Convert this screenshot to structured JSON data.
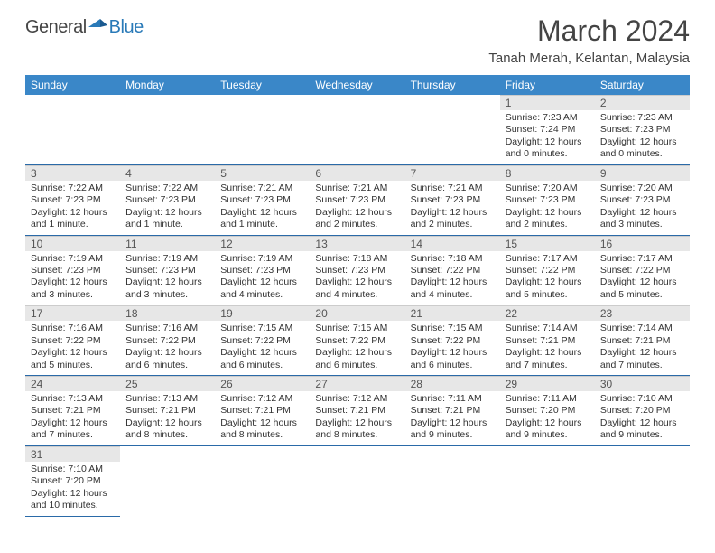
{
  "logo": {
    "part1": "General",
    "part2": "Blue"
  },
  "title": "March 2024",
  "location": "Tanah Merah, Kelantan, Malaysia",
  "colors": {
    "header_bg": "#3a87c8",
    "header_text": "#ffffff",
    "daynum_bg": "#e7e7e7",
    "row_border": "#2a6aa8",
    "logo_blue": "#2a7ab8"
  },
  "weekdays": [
    "Sunday",
    "Monday",
    "Tuesday",
    "Wednesday",
    "Thursday",
    "Friday",
    "Saturday"
  ],
  "weeks": [
    [
      null,
      null,
      null,
      null,
      null,
      {
        "day": "1",
        "sunrise": "Sunrise: 7:23 AM",
        "sunset": "Sunset: 7:24 PM",
        "daylight": "Daylight: 12 hours and 0 minutes."
      },
      {
        "day": "2",
        "sunrise": "Sunrise: 7:23 AM",
        "sunset": "Sunset: 7:23 PM",
        "daylight": "Daylight: 12 hours and 0 minutes."
      }
    ],
    [
      {
        "day": "3",
        "sunrise": "Sunrise: 7:22 AM",
        "sunset": "Sunset: 7:23 PM",
        "daylight": "Daylight: 12 hours and 1 minute."
      },
      {
        "day": "4",
        "sunrise": "Sunrise: 7:22 AM",
        "sunset": "Sunset: 7:23 PM",
        "daylight": "Daylight: 12 hours and 1 minute."
      },
      {
        "day": "5",
        "sunrise": "Sunrise: 7:21 AM",
        "sunset": "Sunset: 7:23 PM",
        "daylight": "Daylight: 12 hours and 1 minute."
      },
      {
        "day": "6",
        "sunrise": "Sunrise: 7:21 AM",
        "sunset": "Sunset: 7:23 PM",
        "daylight": "Daylight: 12 hours and 2 minutes."
      },
      {
        "day": "7",
        "sunrise": "Sunrise: 7:21 AM",
        "sunset": "Sunset: 7:23 PM",
        "daylight": "Daylight: 12 hours and 2 minutes."
      },
      {
        "day": "8",
        "sunrise": "Sunrise: 7:20 AM",
        "sunset": "Sunset: 7:23 PM",
        "daylight": "Daylight: 12 hours and 2 minutes."
      },
      {
        "day": "9",
        "sunrise": "Sunrise: 7:20 AM",
        "sunset": "Sunset: 7:23 PM",
        "daylight": "Daylight: 12 hours and 3 minutes."
      }
    ],
    [
      {
        "day": "10",
        "sunrise": "Sunrise: 7:19 AM",
        "sunset": "Sunset: 7:23 PM",
        "daylight": "Daylight: 12 hours and 3 minutes."
      },
      {
        "day": "11",
        "sunrise": "Sunrise: 7:19 AM",
        "sunset": "Sunset: 7:23 PM",
        "daylight": "Daylight: 12 hours and 3 minutes."
      },
      {
        "day": "12",
        "sunrise": "Sunrise: 7:19 AM",
        "sunset": "Sunset: 7:23 PM",
        "daylight": "Daylight: 12 hours and 4 minutes."
      },
      {
        "day": "13",
        "sunrise": "Sunrise: 7:18 AM",
        "sunset": "Sunset: 7:23 PM",
        "daylight": "Daylight: 12 hours and 4 minutes."
      },
      {
        "day": "14",
        "sunrise": "Sunrise: 7:18 AM",
        "sunset": "Sunset: 7:22 PM",
        "daylight": "Daylight: 12 hours and 4 minutes."
      },
      {
        "day": "15",
        "sunrise": "Sunrise: 7:17 AM",
        "sunset": "Sunset: 7:22 PM",
        "daylight": "Daylight: 12 hours and 5 minutes."
      },
      {
        "day": "16",
        "sunrise": "Sunrise: 7:17 AM",
        "sunset": "Sunset: 7:22 PM",
        "daylight": "Daylight: 12 hours and 5 minutes."
      }
    ],
    [
      {
        "day": "17",
        "sunrise": "Sunrise: 7:16 AM",
        "sunset": "Sunset: 7:22 PM",
        "daylight": "Daylight: 12 hours and 5 minutes."
      },
      {
        "day": "18",
        "sunrise": "Sunrise: 7:16 AM",
        "sunset": "Sunset: 7:22 PM",
        "daylight": "Daylight: 12 hours and 6 minutes."
      },
      {
        "day": "19",
        "sunrise": "Sunrise: 7:15 AM",
        "sunset": "Sunset: 7:22 PM",
        "daylight": "Daylight: 12 hours and 6 minutes."
      },
      {
        "day": "20",
        "sunrise": "Sunrise: 7:15 AM",
        "sunset": "Sunset: 7:22 PM",
        "daylight": "Daylight: 12 hours and 6 minutes."
      },
      {
        "day": "21",
        "sunrise": "Sunrise: 7:15 AM",
        "sunset": "Sunset: 7:22 PM",
        "daylight": "Daylight: 12 hours and 6 minutes."
      },
      {
        "day": "22",
        "sunrise": "Sunrise: 7:14 AM",
        "sunset": "Sunset: 7:21 PM",
        "daylight": "Daylight: 12 hours and 7 minutes."
      },
      {
        "day": "23",
        "sunrise": "Sunrise: 7:14 AM",
        "sunset": "Sunset: 7:21 PM",
        "daylight": "Daylight: 12 hours and 7 minutes."
      }
    ],
    [
      {
        "day": "24",
        "sunrise": "Sunrise: 7:13 AM",
        "sunset": "Sunset: 7:21 PM",
        "daylight": "Daylight: 12 hours and 7 minutes."
      },
      {
        "day": "25",
        "sunrise": "Sunrise: 7:13 AM",
        "sunset": "Sunset: 7:21 PM",
        "daylight": "Daylight: 12 hours and 8 minutes."
      },
      {
        "day": "26",
        "sunrise": "Sunrise: 7:12 AM",
        "sunset": "Sunset: 7:21 PM",
        "daylight": "Daylight: 12 hours and 8 minutes."
      },
      {
        "day": "27",
        "sunrise": "Sunrise: 7:12 AM",
        "sunset": "Sunset: 7:21 PM",
        "daylight": "Daylight: 12 hours and 8 minutes."
      },
      {
        "day": "28",
        "sunrise": "Sunrise: 7:11 AM",
        "sunset": "Sunset: 7:21 PM",
        "daylight": "Daylight: 12 hours and 9 minutes."
      },
      {
        "day": "29",
        "sunrise": "Sunrise: 7:11 AM",
        "sunset": "Sunset: 7:20 PM",
        "daylight": "Daylight: 12 hours and 9 minutes."
      },
      {
        "day": "30",
        "sunrise": "Sunrise: 7:10 AM",
        "sunset": "Sunset: 7:20 PM",
        "daylight": "Daylight: 12 hours and 9 minutes."
      }
    ],
    [
      {
        "day": "31",
        "sunrise": "Sunrise: 7:10 AM",
        "sunset": "Sunset: 7:20 PM",
        "daylight": "Daylight: 12 hours and 10 minutes."
      },
      null,
      null,
      null,
      null,
      null,
      null
    ]
  ]
}
